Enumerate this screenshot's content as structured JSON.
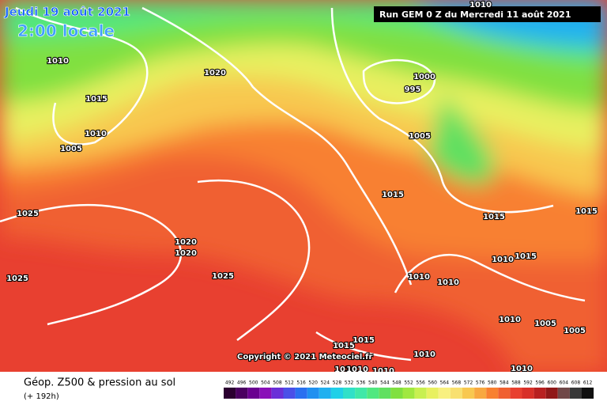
{
  "header": {
    "date": "Jeudi 19 août 2021",
    "time": "2:00 locale",
    "run": "Run GEM 0 Z du Mercredi 11 août 2021"
  },
  "isobar_labels": [
    1010,
    1020,
    1015,
    1010,
    1005,
    1010,
    1000,
    995,
    1005,
    1015,
    1015,
    1015,
    1025,
    1020,
    1020,
    1025,
    1025,
    1010,
    1015,
    1010,
    1010,
    1010,
    1005,
    1005,
    1015,
    1015,
    1010,
    1010,
    1010,
    1010,
    1010
  ],
  "copyright": "Copyright © 2021 Meteociel.fr",
  "legend": {
    "title": "Géop. Z500 & pression au sol",
    "subtitle": "(+ 192h)",
    "values": [
      492,
      496,
      500,
      504,
      508,
      512,
      516,
      520,
      524,
      528,
      532,
      536,
      540,
      544,
      548,
      552,
      556,
      560,
      564,
      568,
      572,
      576,
      580,
      584,
      588,
      592,
      596,
      600,
      604,
      608,
      612
    ],
    "colors": [
      "#2b0030",
      "#4a0060",
      "#6a0090",
      "#8a10b8",
      "#6a30d8",
      "#4a50e8",
      "#2a70f0",
      "#2090f0",
      "#20b0f0",
      "#20d0e8",
      "#30e0c8",
      "#40e8a8",
      "#50e880",
      "#60e060",
      "#80e040",
      "#a0e840",
      "#c8f050",
      "#e8f060",
      "#f8f080",
      "#f8e070",
      "#f8c850",
      "#f8a840",
      "#f88030",
      "#f06030",
      "#e84030",
      "#d83028",
      "#b82020",
      "#901818",
      "#704848",
      "#383838",
      "#101010"
    ]
  }
}
